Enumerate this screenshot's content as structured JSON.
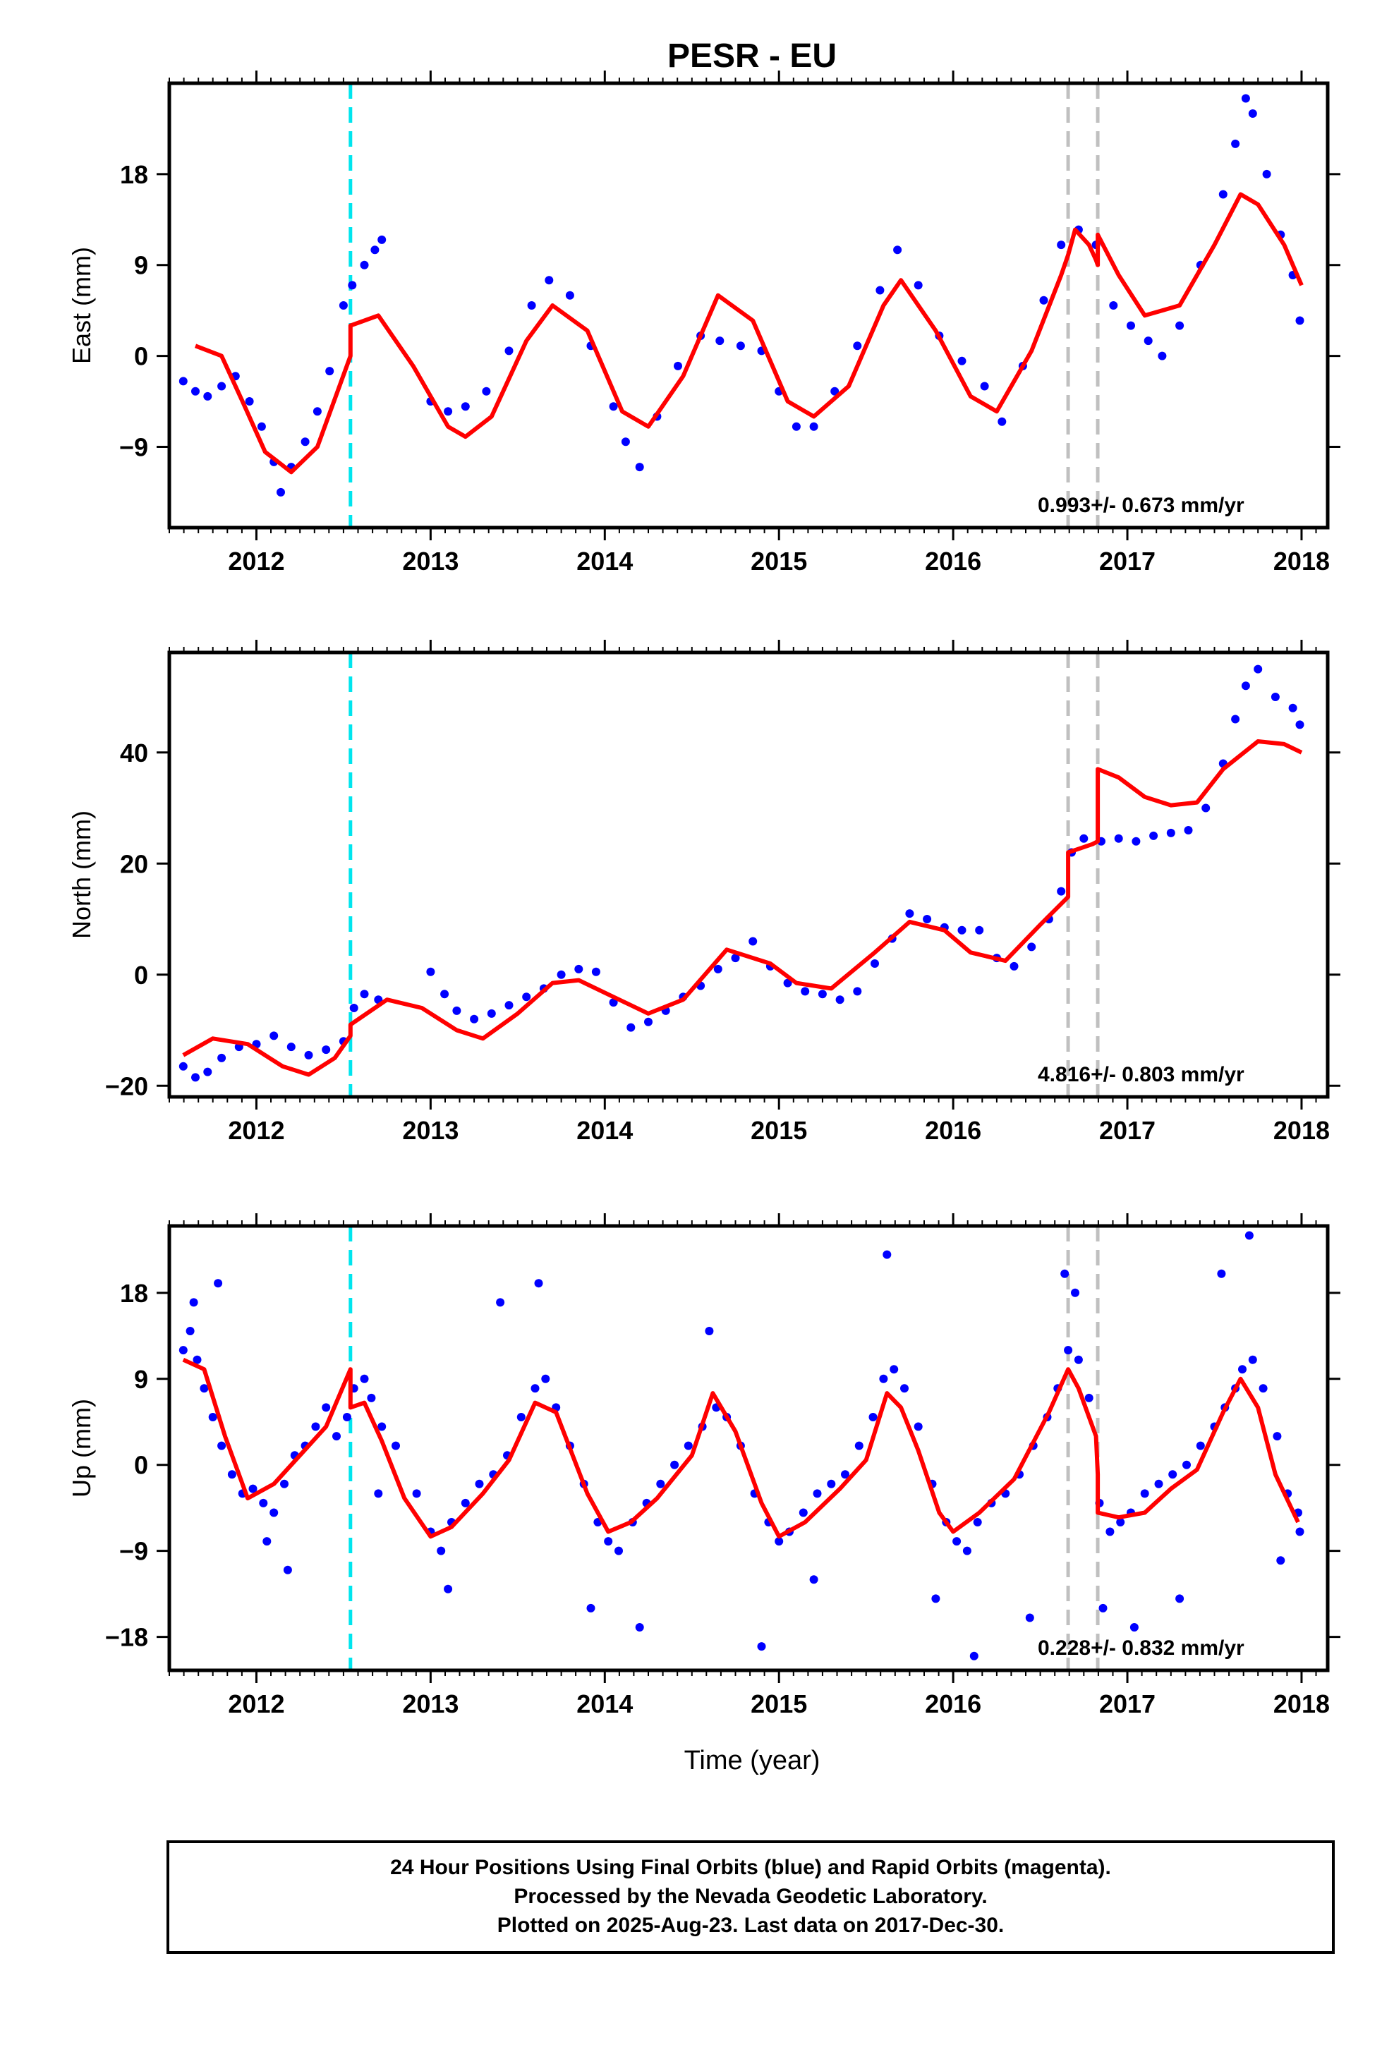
{
  "chart_data": {
    "title": "PESR - EU",
    "xlabel": "Time (year)",
    "xlim": [
      2011.5,
      2018.15
    ],
    "xticks": [
      2012,
      2013,
      2014,
      2015,
      2016,
      2017,
      2018
    ],
    "colors": {
      "data": "#0000ff",
      "model": "#ff0000",
      "antenna_offset": "#00e5ee",
      "equipment_offset": "#c0c0c0"
    },
    "offset_lines": [
      {
        "x": 2012.54,
        "kind": "antenna",
        "style": "cyan dashed"
      },
      {
        "x": 2016.66,
        "kind": "equipment",
        "style": "gray dashed"
      },
      {
        "x": 2016.83,
        "kind": "equipment",
        "style": "gray dashed"
      }
    ],
    "panels": [
      {
        "component": "east",
        "type": "scatter",
        "ylabel": "East (mm)",
        "ylim": [
          -17,
          27
        ],
        "yticks": [
          -9,
          0,
          9,
          18
        ],
        "rate_label": "0.993+/- 0.673 mm/yr",
        "series": [
          {
            "name": "daily positions",
            "type": "scatter",
            "x": [
              2011.58,
              2011.65,
              2011.72,
              2011.8,
              2011.88,
              2011.96,
              2012.03,
              2012.1,
              2012.14,
              2012.2,
              2012.28,
              2012.35,
              2012.42,
              2012.5,
              2012.55,
              2012.62,
              2012.68,
              2012.72,
              2013.0,
              2013.1,
              2013.2,
              2013.32,
              2013.45,
              2013.58,
              2013.68,
              2013.8,
              2013.92,
              2014.05,
              2014.12,
              2014.2,
              2014.3,
              2014.42,
              2014.55,
              2014.66,
              2014.78,
              2014.9,
              2015.0,
              2015.1,
              2015.2,
              2015.32,
              2015.45,
              2015.58,
              2015.68,
              2015.8,
              2015.92,
              2016.05,
              2016.18,
              2016.28,
              2016.4,
              2016.52,
              2016.62,
              2016.72,
              2016.82,
              2016.92,
              2017.02,
              2017.12,
              2017.2,
              2017.3,
              2017.42,
              2017.55,
              2017.62,
              2017.68,
              2017.72,
              2017.8,
              2017.88,
              2017.95,
              2017.99
            ],
            "y": [
              -2.5,
              -3.5,
              -4.0,
              -3.0,
              -2.0,
              -4.5,
              -7.0,
              -10.5,
              -13.5,
              -11.0,
              -8.5,
              -5.5,
              -1.5,
              5.0,
              7.0,
              9.0,
              10.5,
              11.5,
              -4.5,
              -5.5,
              -5.0,
              -3.5,
              0.5,
              5.0,
              7.5,
              6.0,
              1.0,
              -5.0,
              -8.5,
              -11.0,
              -6.0,
              -1.0,
              2.0,
              1.5,
              1.0,
              0.5,
              -3.5,
              -7.0,
              -7.0,
              -3.5,
              1.0,
              6.5,
              10.5,
              7.0,
              2.0,
              -0.5,
              -3.0,
              -6.5,
              -1.0,
              5.5,
              11.0,
              12.5,
              11.0,
              5.0,
              3.0,
              1.5,
              0.0,
              3.0,
              9.0,
              16.0,
              21.0,
              25.5,
              24.0,
              18.0,
              12.0,
              8.0,
              3.5
            ]
          },
          {
            "name": "model fit",
            "type": "line",
            "x": [
              2011.65,
              2011.8,
              2011.92,
              2012.05,
              2012.2,
              2012.35,
              2012.54,
              2012.54,
              2012.7,
              2012.9,
              2013.1,
              2013.2,
              2013.35,
              2013.55,
              2013.7,
              2013.9,
              2014.1,
              2014.25,
              2014.45,
              2014.65,
              2014.85,
              2015.05,
              2015.2,
              2015.4,
              2015.6,
              2015.7,
              2015.9,
              2016.1,
              2016.25,
              2016.45,
              2016.62,
              2016.66,
              2016.7,
              2016.78,
              2016.82,
              2016.83,
              2016.83,
              2016.95,
              2017.1,
              2017.3,
              2017.5,
              2017.65,
              2017.75,
              2017.9,
              2018.0
            ],
            "y": [
              1.0,
              0.0,
              -4.5,
              -9.5,
              -11.5,
              -9.0,
              0.0,
              3.0,
              4.0,
              -1.0,
              -7.0,
              -8.0,
              -6.0,
              1.5,
              5.0,
              2.5,
              -5.5,
              -7.0,
              -2.0,
              6.0,
              3.5,
              -4.5,
              -6.0,
              -3.0,
              5.0,
              7.5,
              2.5,
              -4.0,
              -5.5,
              0.5,
              8.0,
              10.0,
              12.5,
              11.0,
              9.5,
              9.0,
              12.0,
              8.0,
              4.0,
              5.0,
              11.0,
              16.0,
              15.0,
              11.0,
              7.0
            ]
          }
        ]
      },
      {
        "component": "north",
        "type": "scatter",
        "ylabel": "North (mm)",
        "ylim": [
          -22,
          58
        ],
        "yticks": [
          -20,
          0,
          20,
          40
        ],
        "rate_label": "4.816+/- 0.803 mm/yr",
        "series": [
          {
            "name": "daily positions",
            "type": "scatter",
            "x": [
              2011.58,
              2011.65,
              2011.72,
              2011.8,
              2011.9,
              2012.0,
              2012.1,
              2012.2,
              2012.3,
              2012.4,
              2012.5,
              2012.56,
              2012.62,
              2012.7,
              2013.0,
              2013.08,
              2013.15,
              2013.25,
              2013.35,
              2013.45,
              2013.55,
              2013.65,
              2013.75,
              2013.85,
              2013.95,
              2014.05,
              2014.15,
              2014.25,
              2014.35,
              2014.45,
              2014.55,
              2014.65,
              2014.75,
              2014.85,
              2014.95,
              2015.05,
              2015.15,
              2015.25,
              2015.35,
              2015.45,
              2015.55,
              2015.65,
              2015.75,
              2015.85,
              2015.95,
              2016.05,
              2016.15,
              2016.25,
              2016.35,
              2016.45,
              2016.55,
              2016.62,
              2016.68,
              2016.75,
              2016.85,
              2016.95,
              2017.05,
              2017.15,
              2017.25,
              2017.35,
              2017.45,
              2017.55,
              2017.62,
              2017.68,
              2017.75,
              2017.85,
              2017.95,
              2017.99
            ],
            "y": [
              -16.5,
              -18.5,
              -17.5,
              -15.0,
              -13.0,
              -12.5,
              -11.0,
              -13.0,
              -14.5,
              -13.5,
              -12.0,
              -6.0,
              -3.5,
              -4.5,
              0.5,
              -3.5,
              -6.5,
              -8.0,
              -7.0,
              -5.5,
              -4.0,
              -2.5,
              0.0,
              1.0,
              0.5,
              -5.0,
              -9.5,
              -8.5,
              -6.5,
              -4.0,
              -2.0,
              1.0,
              3.0,
              6.0,
              1.5,
              -1.5,
              -3.0,
              -3.5,
              -4.5,
              -3.0,
              2.0,
              6.5,
              11.0,
              10.0,
              8.5,
              8.0,
              8.0,
              3.0,
              1.5,
              5.0,
              10.0,
              15.0,
              22.0,
              24.5,
              24.0,
              24.5,
              24.0,
              25.0,
              25.5,
              26.0,
              30.0,
              38.0,
              46.0,
              52.0,
              55.0,
              50.0,
              48.0,
              45.0
            ]
          },
          {
            "name": "model fit",
            "type": "line",
            "x": [
              2011.58,
              2011.75,
              2011.95,
              2012.15,
              2012.3,
              2012.45,
              2012.54,
              2012.54,
              2012.75,
              2012.95,
              2013.15,
              2013.3,
              2013.5,
              2013.7,
              2013.85,
              2014.05,
              2014.25,
              2014.45,
              2014.7,
              2014.95,
              2015.1,
              2015.3,
              2015.55,
              2015.75,
              2015.95,
              2016.1,
              2016.3,
              2016.5,
              2016.66,
              2016.66,
              2016.8,
              2016.83,
              2016.83,
              2016.95,
              2017.1,
              2017.25,
              2017.4,
              2017.55,
              2017.75,
              2017.9,
              2018.0
            ],
            "y": [
              -14.5,
              -11.5,
              -12.5,
              -16.5,
              -18.0,
              -15.0,
              -11.0,
              -9.0,
              -4.5,
              -6.0,
              -10.0,
              -11.5,
              -7.0,
              -1.5,
              -1.0,
              -4.0,
              -7.0,
              -4.5,
              4.5,
              2.0,
              -1.5,
              -2.5,
              4.0,
              9.5,
              8.0,
              4.0,
              2.5,
              9.0,
              14.0,
              22.0,
              23.5,
              24.0,
              37.0,
              35.5,
              32.0,
              30.5,
              31.0,
              37.0,
              42.0,
              41.5,
              40.0
            ]
          }
        ]
      },
      {
        "component": "up",
        "type": "scatter",
        "ylabel": "Up (mm)",
        "ylim": [
          -21.5,
          25
        ],
        "yticks": [
          -18,
          -9,
          0,
          9,
          18
        ],
        "rate_label": "0.228+/- 0.832 mm/yr",
        "series": [
          {
            "name": "daily positions",
            "type": "scatter",
            "x": [
              2011.58,
              2011.62,
              2011.66,
              2011.7,
              2011.75,
              2011.8,
              2011.86,
              2011.92,
              2011.98,
              2012.04,
              2012.1,
              2012.16,
              2012.22,
              2012.28,
              2012.34,
              2012.4,
              2012.46,
              2012.52,
              2012.56,
              2012.62,
              2012.66,
              2012.72,
              2012.8,
              2012.92,
              2013.0,
              2013.06,
              2013.12,
              2013.2,
              2013.28,
              2013.36,
              2013.44,
              2013.52,
              2013.6,
              2013.66,
              2013.72,
              2013.8,
              2013.88,
              2013.96,
              2014.02,
              2014.08,
              2014.16,
              2014.24,
              2014.32,
              2014.4,
              2014.48,
              2014.56,
              2014.64,
              2014.7,
              2014.78,
              2014.86,
              2014.94,
              2015.0,
              2015.06,
              2015.14,
              2015.22,
              2015.3,
              2015.38,
              2015.46,
              2015.54,
              2015.6,
              2015.66,
              2015.72,
              2015.8,
              2015.88,
              2015.96,
              2016.02,
              2016.08,
              2016.14,
              2016.22,
              2016.3,
              2016.38,
              2016.46,
              2016.54,
              2016.6,
              2016.66,
              2016.72,
              2016.78,
              2016.84,
              2016.9,
              2016.96,
              2017.02,
              2017.1,
              2017.18,
              2017.26,
              2017.34,
              2017.42,
              2017.5,
              2017.56,
              2017.62,
              2017.66,
              2017.72,
              2017.78,
              2017.86,
              2017.92,
              2017.98,
              2017.99,
              2011.64,
              2011.78,
              2012.06,
              2012.18,
              2012.7,
              2013.1,
              2013.4,
              2013.62,
              2013.92,
              2014.2,
              2014.6,
              2014.9,
              2015.2,
              2015.62,
              2015.9,
              2016.12,
              2016.44,
              2016.64,
              2016.7,
              2016.86,
              2017.04,
              2017.3,
              2017.54,
              2017.7,
              2017.88
            ],
            "y": [
              12.0,
              14.0,
              11.0,
              8.0,
              5.0,
              2.0,
              -1.0,
              -3.0,
              -2.5,
              -4.0,
              -5.0,
              -2.0,
              1.0,
              2.0,
              4.0,
              6.0,
              3.0,
              5.0,
              8.0,
              9.0,
              7.0,
              4.0,
              2.0,
              -3.0,
              -7.0,
              -9.0,
              -6.0,
              -4.0,
              -2.0,
              -1.0,
              1.0,
              5.0,
              8.0,
              9.0,
              6.0,
              2.0,
              -2.0,
              -6.0,
              -8.0,
              -9.0,
              -6.0,
              -4.0,
              -2.0,
              0.0,
              2.0,
              4.0,
              6.0,
              5.0,
              2.0,
              -3.0,
              -6.0,
              -8.0,
              -7.0,
              -5.0,
              -3.0,
              -2.0,
              -1.0,
              2.0,
              5.0,
              9.0,
              10.0,
              8.0,
              4.0,
              -2.0,
              -6.0,
              -8.0,
              -9.0,
              -6.0,
              -4.0,
              -3.0,
              -1.0,
              2.0,
              5.0,
              8.0,
              12.0,
              11.0,
              7.0,
              -4.0,
              -7.0,
              -6.0,
              -5.0,
              -3.0,
              -2.0,
              -1.0,
              0.0,
              2.0,
              4.0,
              6.0,
              8.0,
              10.0,
              11.0,
              8.0,
              3.0,
              -3.0,
              -5.0,
              -7.0,
              17.0,
              19.0,
              -8.0,
              -11.0,
              -3.0,
              -13.0,
              17.0,
              19.0,
              -15.0,
              -17.0,
              14.0,
              -19.0,
              -12.0,
              22.0,
              -14.0,
              -20.0,
              -16.0,
              20.0,
              18.0,
              -15.0,
              -17.0,
              -14.0,
              20.0,
              24.0,
              -10.0
            ]
          },
          {
            "name": "model fit",
            "type": "line",
            "x": [
              2011.58,
              2011.7,
              2011.82,
              2011.95,
              2012.1,
              2012.25,
              2012.4,
              2012.54,
              2012.54,
              2012.62,
              2012.72,
              2012.85,
              2013.0,
              2013.12,
              2013.3,
              2013.45,
              2013.6,
              2013.72,
              2013.9,
              2014.02,
              2014.15,
              2014.3,
              2014.5,
              2014.62,
              2014.75,
              2014.9,
              2015.0,
              2015.15,
              2015.35,
              2015.5,
              2015.62,
              2015.7,
              2015.8,
              2015.92,
              2016.0,
              2016.15,
              2016.35,
              2016.55,
              2016.66,
              2016.72,
              2016.82,
              2016.83,
              2016.83,
              2016.95,
              2017.1,
              2017.25,
              2017.4,
              2017.55,
              2017.65,
              2017.75,
              2017.85,
              2017.98
            ],
            "y": [
              11.0,
              10.0,
              3.0,
              -3.5,
              -2.0,
              1.0,
              4.0,
              10.0,
              6.0,
              6.5,
              2.5,
              -3.5,
              -7.5,
              -6.5,
              -3.0,
              0.5,
              6.5,
              5.5,
              -3.0,
              -7.0,
              -6.0,
              -3.5,
              1.0,
              7.5,
              3.5,
              -4.0,
              -7.5,
              -6.0,
              -2.5,
              0.5,
              7.5,
              6.0,
              1.5,
              -5.0,
              -7.0,
              -5.0,
              -1.5,
              5.5,
              10.0,
              8.0,
              3.0,
              -1.0,
              -5.0,
              -5.5,
              -5.0,
              -2.5,
              -0.5,
              5.5,
              9.0,
              6.0,
              -1.0,
              -6.0
            ]
          }
        ]
      }
    ],
    "footer": [
      "24 Hour Positions Using Final Orbits (blue) and Rapid Orbits (magenta).",
      "Processed by the Nevada Geodetic Laboratory.",
      "Plotted on 2025-Aug-23. Last data on 2017-Dec-30."
    ]
  }
}
